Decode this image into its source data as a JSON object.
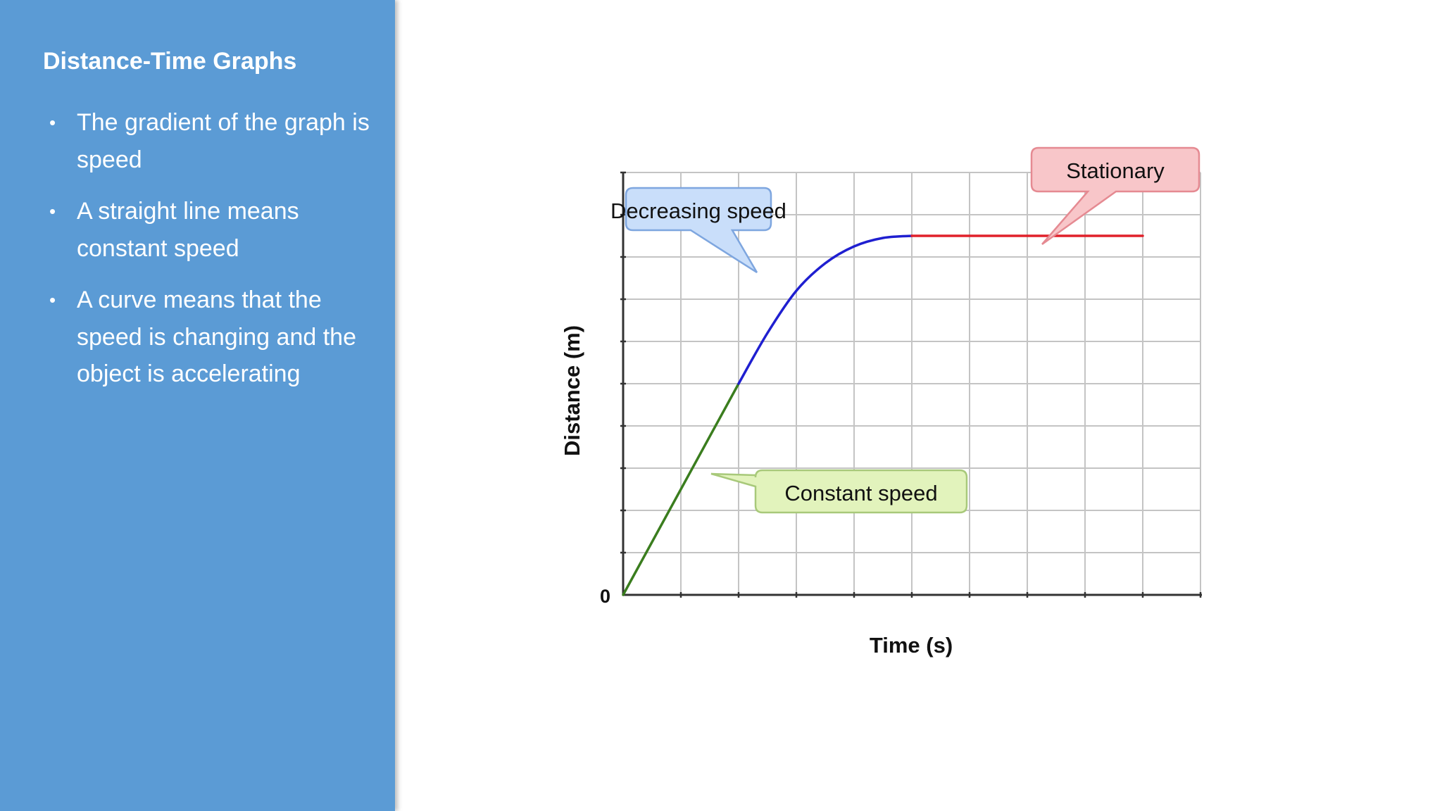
{
  "sidebar": {
    "title": "Distance-Time Graphs",
    "bullets": [
      "The gradient of the graph is speed",
      "A straight line means constant speed",
      "A curve means that the speed is changing and the object is accelerating"
    ],
    "background_color": "#5b9bd5"
  },
  "chart_data": {
    "type": "line",
    "xlabel": "Time (s)",
    "ylabel": "Distance (m)",
    "origin_label": "0",
    "xlim": [
      0,
      10
    ],
    "ylim": [
      0,
      10
    ],
    "grid": true,
    "series": [
      {
        "color": "#3a7d1e",
        "points": [
          [
            0,
            0
          ],
          [
            2,
            5
          ]
        ]
      },
      {
        "color": "#1f1fd0",
        "points": [
          [
            2,
            5
          ],
          [
            2.5,
            6.2
          ],
          [
            3,
            7.2
          ],
          [
            3.5,
            7.85
          ],
          [
            4,
            8.25
          ],
          [
            4.5,
            8.45
          ],
          [
            5,
            8.5
          ]
        ]
      },
      {
        "color": "#e0202a",
        "points": [
          [
            5,
            8.5
          ],
          [
            9,
            8.5
          ]
        ]
      }
    ],
    "annotations": [
      {
        "text": "Decreasing speed",
        "fill": "#c9defa",
        "stroke": "#7ea6df"
      },
      {
        "text": "Stationary",
        "fill": "#f8c6c9",
        "stroke": "#e58a92"
      },
      {
        "text": "Constant speed",
        "fill": "#e2f3bc",
        "stroke": "#a8c97a"
      }
    ]
  }
}
